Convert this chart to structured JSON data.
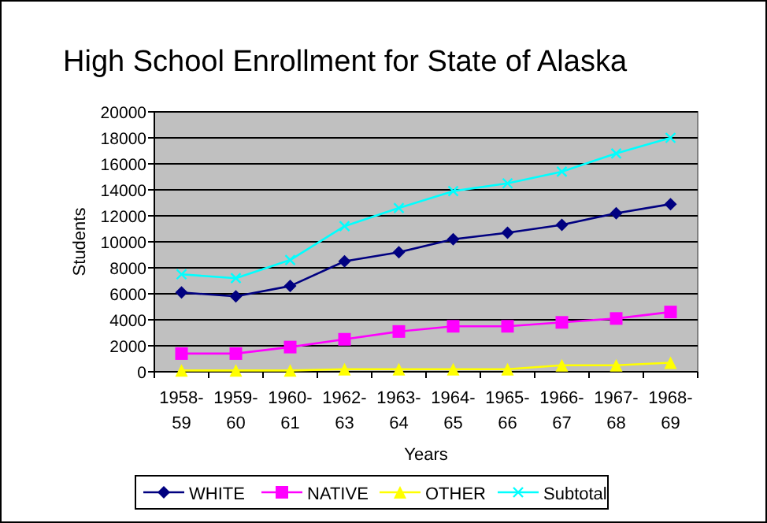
{
  "chart_data": {
    "type": "line",
    "title": "High School Enrollment for State of Alaska",
    "xlabel": "Years",
    "ylabel": "Students",
    "categories": [
      "1958-59",
      "1959-60",
      "1960-61",
      "1962-63",
      "1963-64",
      "1964-65",
      "1965-66",
      "1966-67",
      "1967-68",
      "1968-69"
    ],
    "ylim": [
      0,
      20000
    ],
    "yticks": [
      0,
      2000,
      4000,
      6000,
      8000,
      10000,
      12000,
      14000,
      16000,
      18000,
      20000
    ],
    "grid": "y",
    "legend": "bottom",
    "series": [
      {
        "name": "WHITE",
        "color": "#000080",
        "marker": "diamond",
        "values": [
          6100,
          5800,
          6600,
          8500,
          9200,
          10200,
          10700,
          11300,
          12200,
          12900
        ]
      },
      {
        "name": "NATIVE",
        "color": "#ff00ff",
        "marker": "square",
        "values": [
          1400,
          1400,
          1900,
          2500,
          3100,
          3500,
          3500,
          3800,
          4100,
          4600
        ]
      },
      {
        "name": "OTHER",
        "color": "#ffff00",
        "marker": "triangle",
        "values": [
          100,
          100,
          100,
          200,
          200,
          200,
          200,
          500,
          500,
          700
        ]
      },
      {
        "name": "Subtotal",
        "color": "#00ffff",
        "marker": "cross",
        "values": [
          7500,
          7200,
          8600,
          11200,
          12600,
          13900,
          14500,
          15400,
          16800,
          18000
        ]
      }
    ]
  }
}
